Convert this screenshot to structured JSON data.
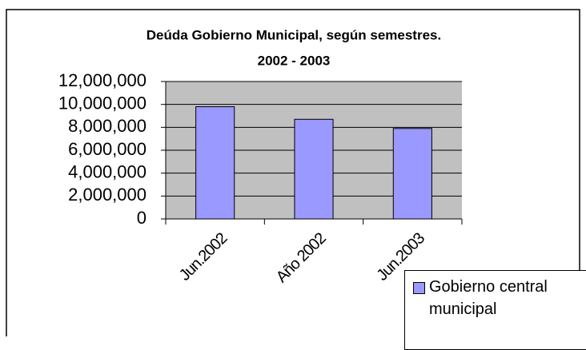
{
  "chart_data": {
    "type": "bar",
    "title": "Deúda Gobierno Municipal, según semestres.",
    "subtitle": "2002 - 2003",
    "categories": [
      "Jun.2002",
      "Año 2002",
      "Jun.2003"
    ],
    "series": [
      {
        "name": "Gobierno central municipal",
        "color": "#9999ff",
        "values": [
          9800000,
          8700000,
          7900000
        ]
      }
    ],
    "ylim": [
      0,
      12000000
    ],
    "yticks": [
      0,
      {
        "value": 2000000,
        "label": "2,000,000"
      },
      {
        "value": 4000000,
        "label": "4,000,000"
      },
      {
        "value": 6000000,
        "label": "6,000,000"
      },
      {
        "value": 8000000,
        "label": "8,000,000"
      },
      {
        "value": 10000000,
        "label": "10,000,000"
      },
      {
        "value": 12000000,
        "label": "12,000,000"
      }
    ],
    "grid": true,
    "legend": "bottom-right"
  }
}
